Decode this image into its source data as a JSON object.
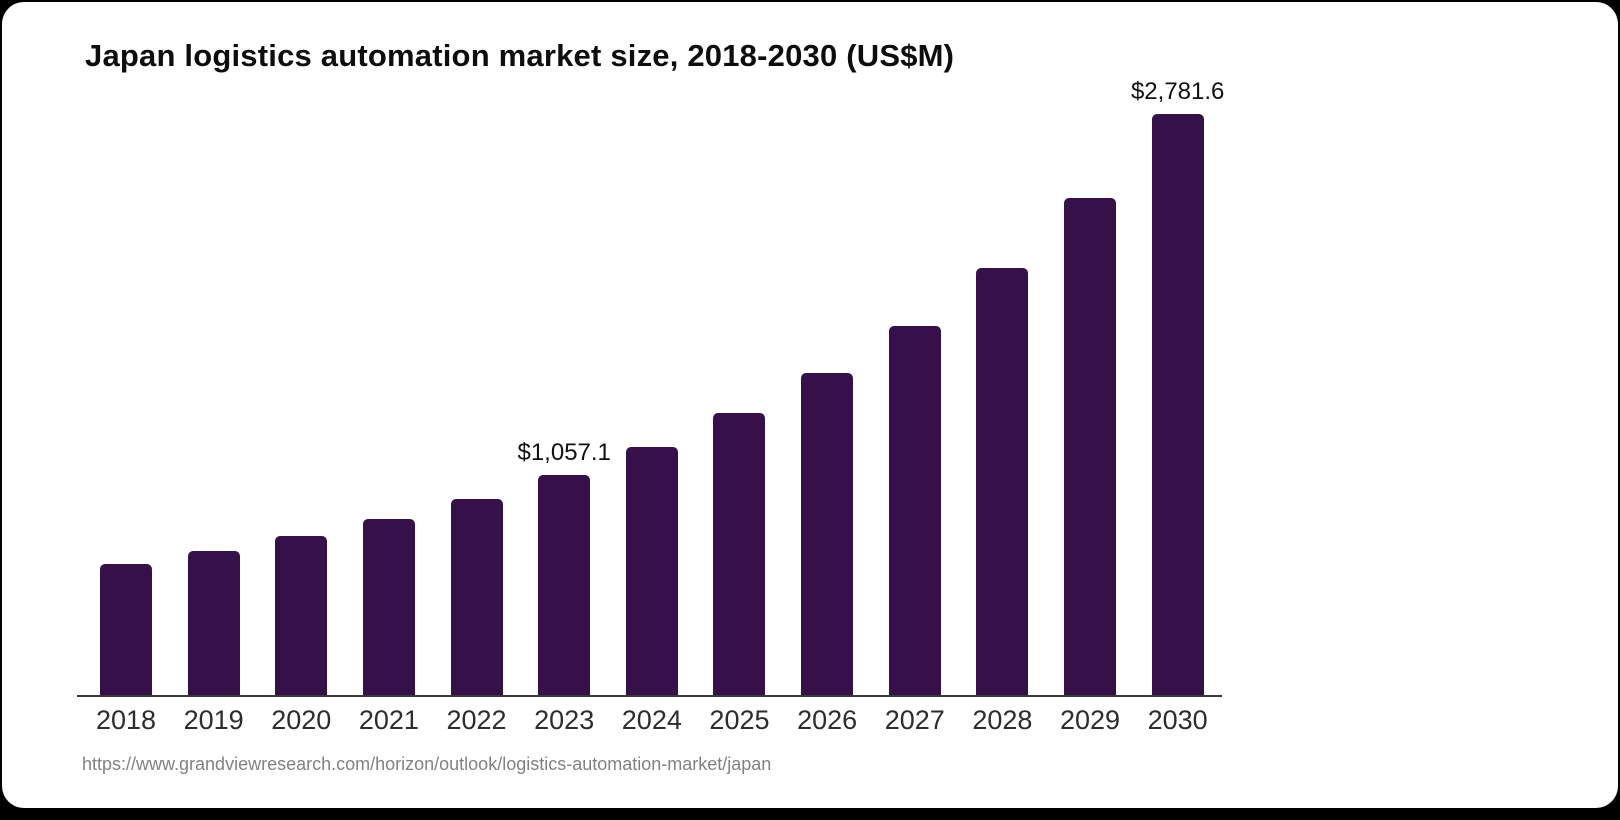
{
  "title": "Japan logistics automation market size, 2018-2030 (US$M)",
  "source_url": "https://www.grandviewresearch.com/horizon/outlook/logistics-automation-market/japan",
  "colors": {
    "bar": "#351049",
    "background": "#000000",
    "card": "#ffffff",
    "axis": "#3a3a3a",
    "year_label": "#2d2d2d",
    "value_label": "#111111",
    "source_text": "#828282"
  },
  "chart_data": {
    "type": "bar",
    "title": "Japan logistics automation market size, 2018-2030 (US$M)",
    "categories": [
      "2018",
      "2019",
      "2020",
      "2021",
      "2022",
      "2023",
      "2024",
      "2025",
      "2026",
      "2027",
      "2028",
      "2029",
      "2030"
    ],
    "values": [
      630,
      691,
      763,
      844,
      942,
      1057.1,
      1191,
      1351,
      1543,
      1768,
      2046,
      2381,
      2781.6
    ],
    "value_labels": [
      {
        "category": "2023",
        "text": "$1,057.1"
      },
      {
        "category": "2030",
        "text": "$2,781.6"
      }
    ],
    "xlabel": "",
    "ylabel": "",
    "ylim": [
      0,
      2781.6
    ],
    "grid": false,
    "legend": false,
    "bar_color": "#351049"
  }
}
